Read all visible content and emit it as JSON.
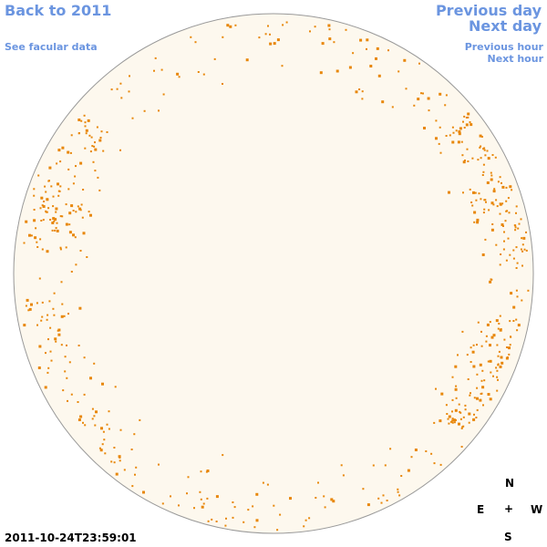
{
  "nav": {
    "back": "Back to 2011",
    "facular": "See facular data",
    "prev_day": "Previous day",
    "next_day": "Next day",
    "prev_hour": "Previous hour",
    "next_hour": "Next hour"
  },
  "timestamp": "2011-10-24T23:59:01",
  "compass": {
    "north": "N",
    "east": "E",
    "center": "+",
    "west": "W",
    "south": "S"
  },
  "colors": {
    "disk_fill": "#fdf8ee",
    "disk_stroke": "#999999",
    "faculae": "#e8870a",
    "link": "#6b95e0"
  }
}
